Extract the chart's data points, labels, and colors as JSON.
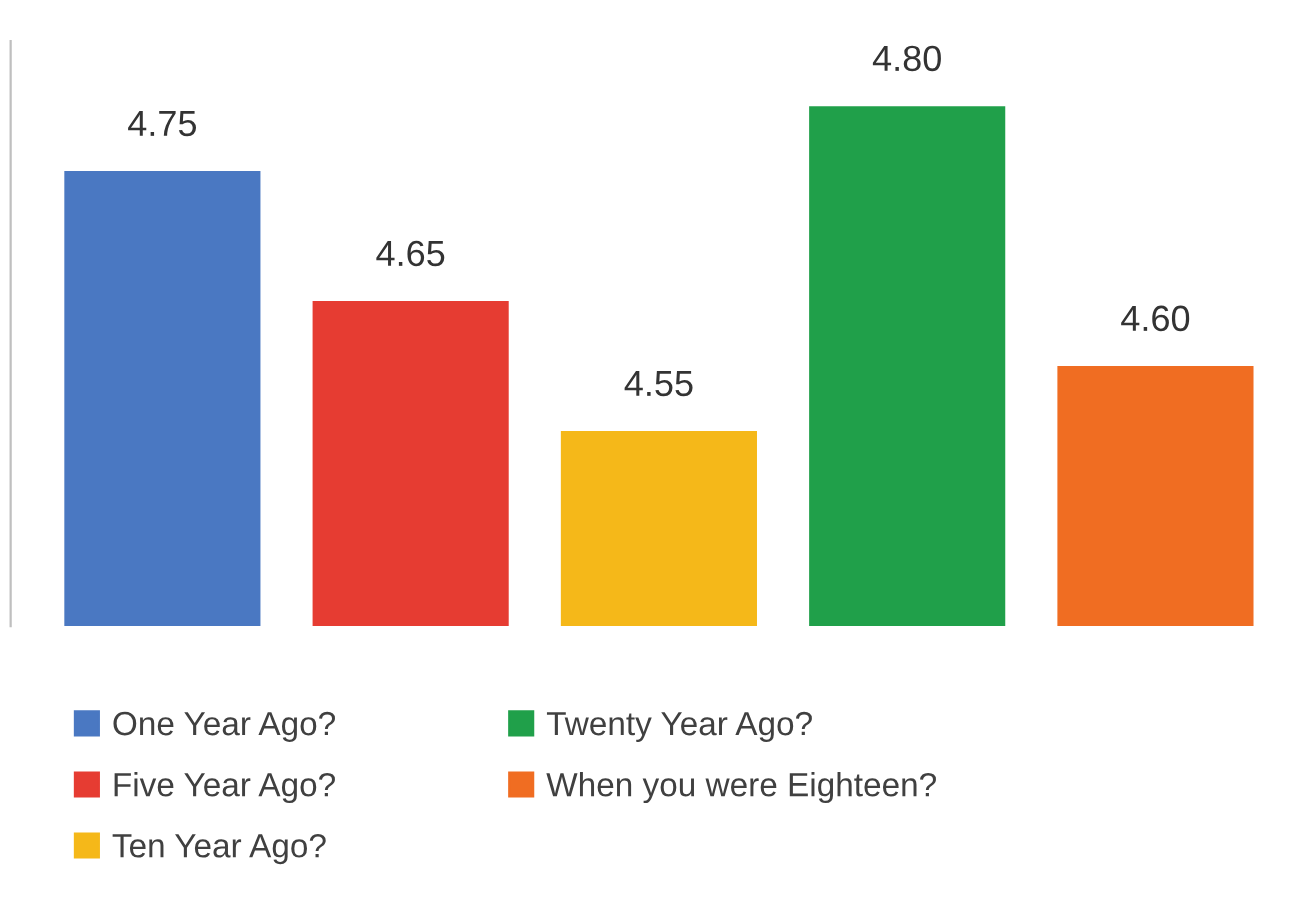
{
  "chart_data": {
    "type": "bar",
    "categories": [
      null
    ],
    "series": [
      {
        "name": "One Year Ago?",
        "color": "#4a78c2",
        "values": [
          4.75
        ],
        "value_labels": [
          "4.75"
        ]
      },
      {
        "name": "Five Year Ago?",
        "color": "#e63c32",
        "values": [
          4.65
        ],
        "value_labels": [
          "4.65"
        ]
      },
      {
        "name": "Ten Year Ago?",
        "color": "#f5b819",
        "values": [
          4.55
        ],
        "value_labels": [
          "4.55"
        ]
      },
      {
        "name": "Twenty Year Ago?",
        "color": "#20a04a",
        "values": [
          4.8
        ],
        "value_labels": [
          "4.80"
        ]
      },
      {
        "name": "When you were Eighteen?",
        "color": "#f06d22",
        "values": [
          4.6
        ],
        "value_labels": [
          "4.60"
        ]
      }
    ],
    "ylim": [
      4.4,
      4.85
    ],
    "tick_labels": false,
    "grid": false,
    "legend": "bottom"
  }
}
